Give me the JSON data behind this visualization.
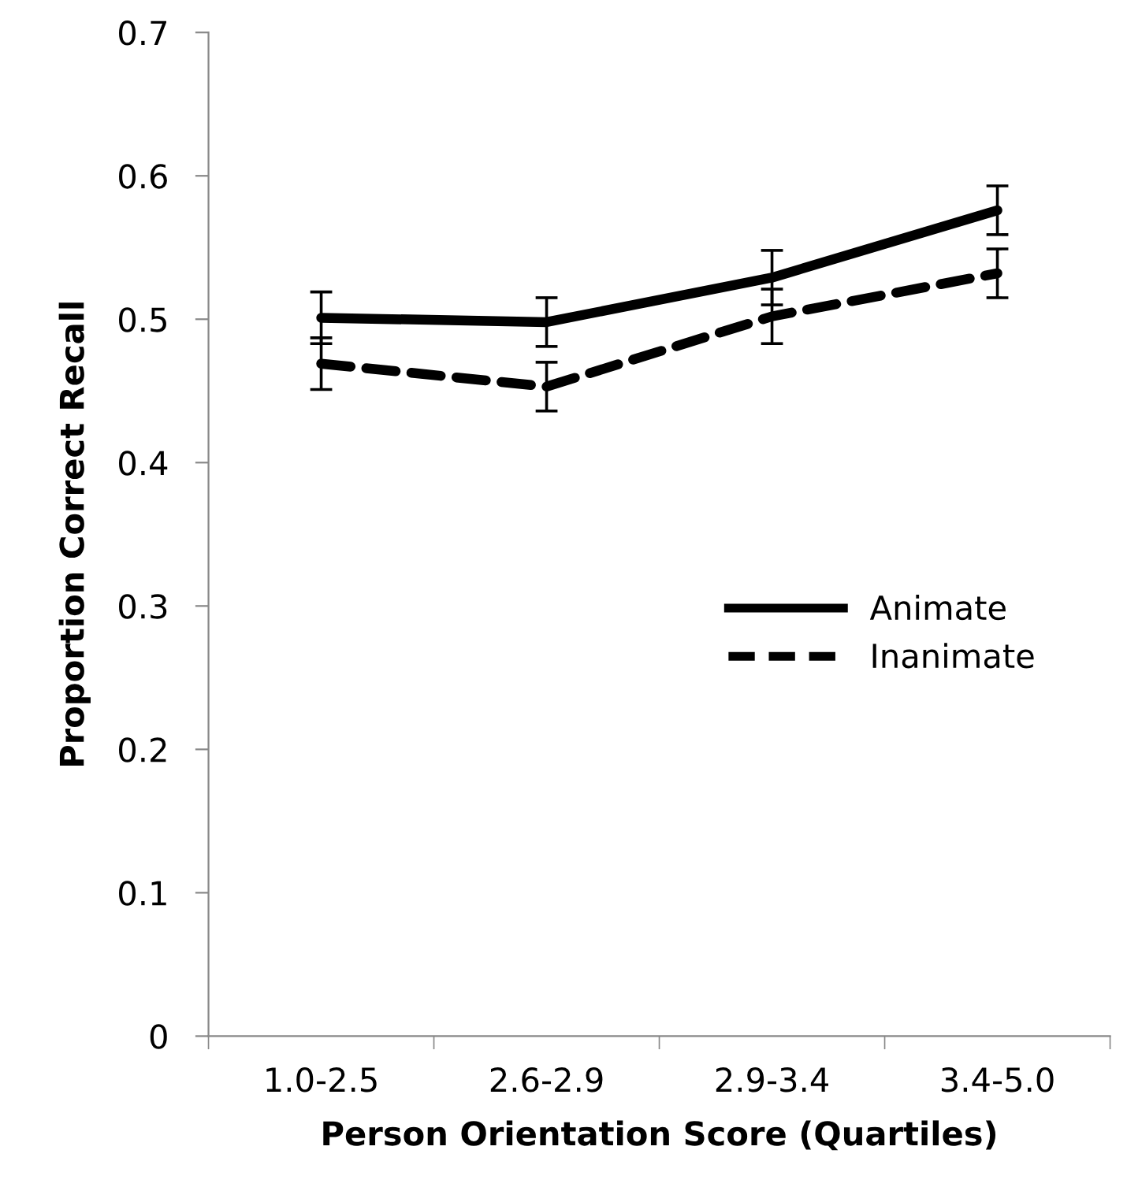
{
  "chart_data": {
    "type": "line",
    "xlabel": "Person Orientation Score (Quartiles)",
    "ylabel": "Proportion Correct Recall",
    "categories": [
      "1.0-2.5",
      "2.6-2.9",
      "2.9-3.4",
      "3.4-5.0"
    ],
    "series": [
      {
        "name": "Animate",
        "color": "#000000",
        "line_style": "solid",
        "values": [
          0.501,
          0.498,
          0.529,
          0.576
        ],
        "errors": [
          0.018,
          0.017,
          0.019,
          0.017
        ]
      },
      {
        "name": "Inanimate",
        "color": "#000000",
        "line_style": "dashed",
        "values": [
          0.469,
          0.453,
          0.502,
          0.532
        ],
        "errors": [
          0.018,
          0.017,
          0.019,
          0.017
        ]
      }
    ],
    "ylim": [
      0,
      0.7
    ],
    "yticks": [
      {
        "value": 0,
        "label": "0"
      },
      0.1,
      0.2,
      0.3,
      0.4,
      0.5,
      0.6,
      0.7
    ],
    "grid": false,
    "legend": "right",
    "marker": "none"
  }
}
